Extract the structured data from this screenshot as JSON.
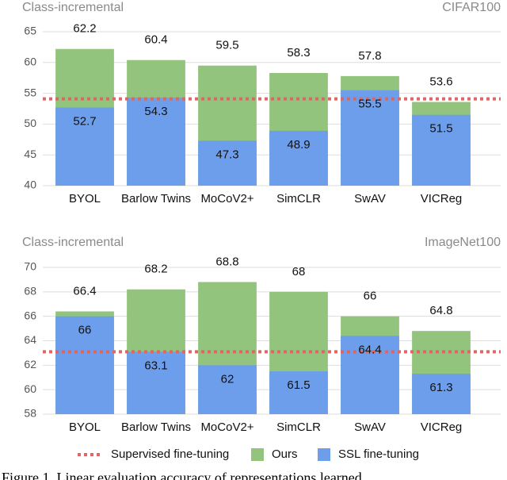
{
  "chart_data": [
    {
      "type": "bar",
      "title": "Class-incremental",
      "subtitle": "CIFAR100",
      "categories": [
        "BYOL",
        "Barlow Twins",
        "MoCoV2+",
        "SimCLR",
        "SwAV",
        "VICReg"
      ],
      "series": [
        {
          "color": "#93c47d",
          "values": [
            62.2,
            60.4,
            59.5,
            58.3,
            57.8,
            53.6
          ]
        },
        {
          "color": "#6d9eeb",
          "values": [
            52.7,
            54.3,
            47.3,
            48.9,
            55.5,
            51.5
          ]
        }
      ],
      "reference_line": {
        "value": 54.1,
        "color": "#e06666"
      },
      "ylim": [
        40,
        65
      ],
      "yticks": [
        40,
        45,
        50,
        55,
        60,
        65
      ],
      "grid": true
    },
    {
      "type": "bar",
      "title": "Class-incremental",
      "subtitle": "ImageNet100",
      "categories": [
        "BYOL",
        "Barlow Twins",
        "MoCoV2+",
        "SimCLR",
        "SwAV",
        "VICReg"
      ],
      "series": [
        {
          "color": "#93c47d",
          "values": [
            66.4,
            68.2,
            68.8,
            68,
            66,
            64.8
          ]
        },
        {
          "color": "#6d9eeb",
          "values": [
            66,
            63.1,
            62,
            61.5,
            64.4,
            61.3
          ]
        }
      ],
      "reference_line": {
        "value": 63.1,
        "color": "#e06666"
      },
      "ylim": [
        58,
        70
      ],
      "yticks": [
        58,
        60,
        62,
        64,
        66,
        68,
        70
      ],
      "grid": true
    }
  ],
  "legend": [
    "Supervised fine-tuning",
    "Ours",
    "SSL fine-tuning"
  ],
  "caption": "Figure 1.  Linear evaluation accuracy of representations learned"
}
